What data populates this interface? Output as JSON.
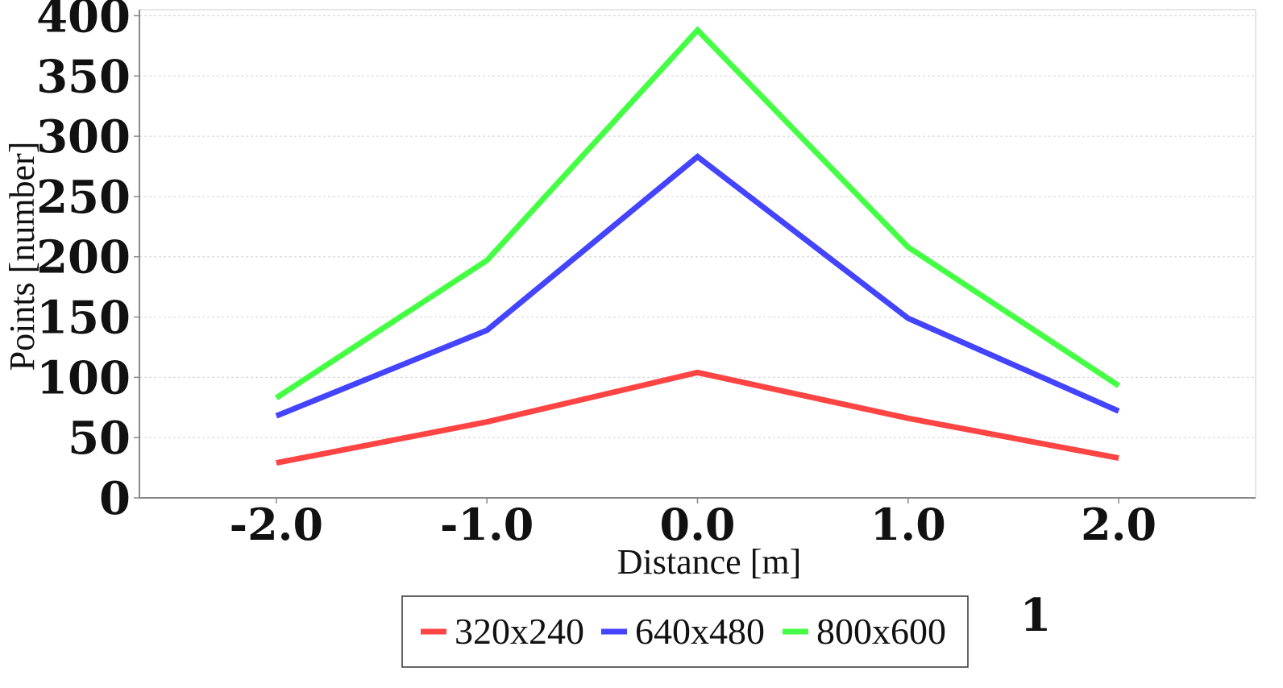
{
  "chart_data": {
    "type": "line",
    "title": "",
    "xlabel": "Distance [m]",
    "ylabel": "Points [number]",
    "x": [
      -2.0,
      -1.0,
      0.0,
      1.0,
      2.0
    ],
    "x_tick_labels": [
      "-2.0",
      "-1.0",
      "0.0",
      "1.0",
      "2.0"
    ],
    "xlim": [
      -2.65,
      2.65
    ],
    "ylim": [
      0,
      405
    ],
    "y_ticks": [
      0,
      50,
      100,
      150,
      200,
      250,
      300,
      350,
      400
    ],
    "grid": true,
    "legend_position": "bottom",
    "series": [
      {
        "name": "320x240",
        "color": "#ff4444",
        "values": [
          29,
          63,
          104,
          66,
          33
        ]
      },
      {
        "name": "640x480",
        "color": "#4444ff",
        "values": [
          68,
          139,
          283,
          149,
          72
        ]
      },
      {
        "name": "800x600",
        "color": "#44ff44",
        "values": [
          83,
          197,
          388,
          208,
          93
        ]
      }
    ],
    "annotation": "1"
  }
}
